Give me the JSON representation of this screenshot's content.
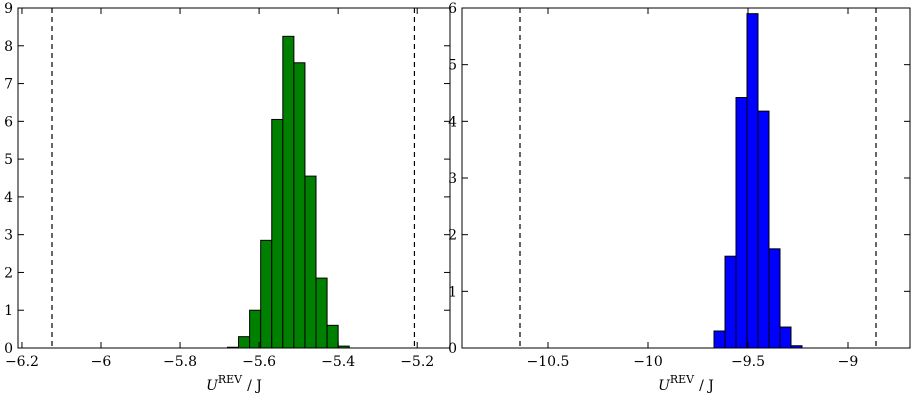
{
  "chart_data": [
    {
      "type": "histogram",
      "bins": [
        -5.68,
        -5.652,
        -5.624,
        -5.596,
        -5.568,
        -5.54,
        -5.512,
        -5.484,
        -5.456,
        -5.428,
        -5.4,
        -5.372
      ],
      "values": [
        0.02,
        0.3,
        1.0,
        2.85,
        6.05,
        8.25,
        7.55,
        4.55,
        1.85,
        0.6,
        0.05
      ],
      "color": "#008000",
      "vlines": [
        -6.124,
        -5.207
      ],
      "xlim": [
        -6.21,
        -5.117
      ],
      "ylim": [
        0,
        9
      ],
      "xticks": [
        -6.2,
        -6.0,
        -5.8,
        -5.6,
        -5.4,
        -5.2
      ],
      "yticks": [
        0,
        1,
        2,
        3,
        4,
        5,
        6,
        7,
        8,
        9
      ],
      "xlabel": {
        "symbol": "U",
        "superscript": "REV",
        "unit": "/ J"
      }
    },
    {
      "type": "histogram",
      "bins": [
        -9.67,
        -9.615,
        -9.56,
        -9.505,
        -9.45,
        -9.395,
        -9.34,
        -9.285,
        -9.23
      ],
      "values": [
        0.3,
        1.62,
        4.42,
        5.9,
        4.18,
        1.75,
        0.37,
        0.04
      ],
      "color": "#0000ff",
      "vlines": [
        -10.64,
        -8.86
      ],
      "xlim": [
        -10.93,
        -8.69
      ],
      "ylim": [
        0,
        6
      ],
      "xticks": [
        -10.5,
        -10.0,
        -9.5,
        -9.0
      ],
      "yticks": [
        0,
        1,
        2,
        3,
        4,
        5,
        6
      ],
      "xlabel": {
        "symbol": "U",
        "superscript": "REV",
        "unit": "/ J"
      }
    }
  ]
}
